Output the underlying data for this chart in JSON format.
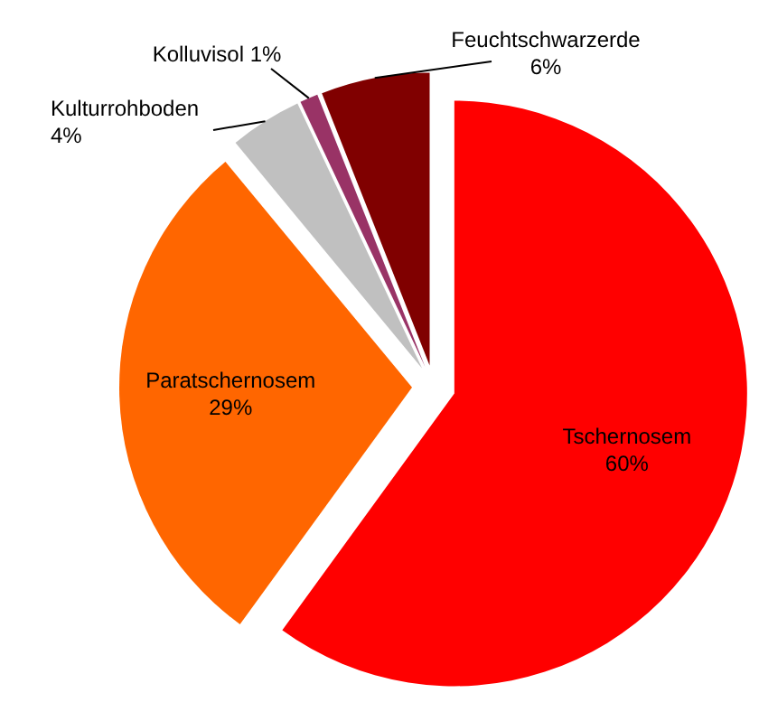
{
  "chart_data": {
    "type": "pie",
    "categories": [
      "Tschernosem",
      "Paratschernosem",
      "Kulturrohboden",
      "Kolluvisol",
      "Feuchtschwarzerde"
    ],
    "values": [
      60,
      29,
      4,
      1,
      6
    ],
    "colors": [
      "#ff0000",
      "#ff6600",
      "#c0c0c0",
      "#993366",
      "#800000"
    ],
    "value_labels": [
      "60%",
      "29%",
      "4%",
      "1%",
      "6%"
    ]
  }
}
